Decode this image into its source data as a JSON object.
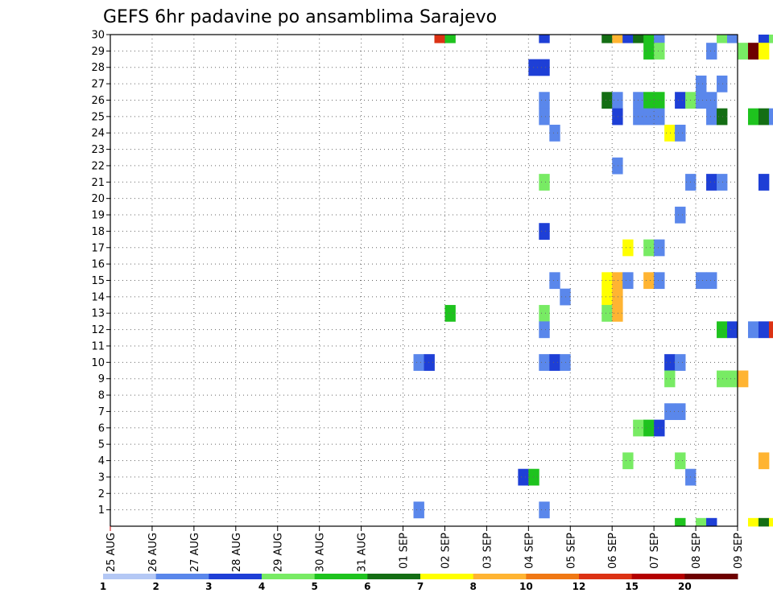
{
  "chart_data": {
    "type": "heatmap",
    "title": "GEFS 6hr padavine po ansamblima Sarajevo",
    "x_tick_labels": [
      "25 AUG",
      "26 AUG",
      "27 AUG",
      "28 AUG",
      "29 AUG",
      "30 AUG",
      "31 AUG",
      "01 SEP",
      "02 SEP",
      "03 SEP",
      "04 SEP",
      "05 SEP",
      "06 SEP",
      "07 SEP",
      "08 SEP",
      "09 SEP"
    ],
    "y_tick_labels": [
      1,
      2,
      3,
      4,
      5,
      6,
      7,
      8,
      9,
      10,
      11,
      12,
      13,
      14,
      15,
      16,
      17,
      18,
      19,
      20,
      21,
      22,
      23,
      24,
      25,
      26,
      27,
      28,
      29,
      30
    ],
    "x_range_days": [
      0,
      15
    ],
    "steps_per_day": 4,
    "grid": "dotted",
    "colorbar": {
      "labels": [
        1,
        2,
        3,
        4,
        5,
        6,
        7,
        8,
        10,
        12,
        15,
        20
      ],
      "colors": [
        "#b4c8f5",
        "#5a87eb",
        "#1e3fd6",
        "#78eb64",
        "#1ec31e",
        "#146e14",
        "#ffff00",
        "#ffb432",
        "#f07814",
        "#dc3214",
        "#b40000",
        "#6e0000"
      ]
    },
    "cells_note": "[member, step_from_25AUG00, color_class_index]",
    "cells": [
      [
        30,
        31,
        9
      ],
      [
        30,
        32,
        4
      ],
      [
        30,
        41,
        2
      ],
      [
        30,
        47,
        5
      ],
      [
        30,
        48,
        7
      ],
      [
        30,
        49,
        2
      ],
      [
        30,
        50,
        5
      ],
      [
        30,
        51,
        4
      ],
      [
        30,
        52,
        1
      ],
      [
        30,
        58,
        3
      ],
      [
        30,
        59,
        1
      ],
      [
        30,
        62,
        2
      ],
      [
        30,
        63,
        3
      ],
      [
        30,
        64,
        2
      ],
      [
        30,
        66,
        4
      ],
      [
        30,
        71,
        1
      ],
      [
        30,
        72,
        9
      ],
      [
        30,
        73,
        1
      ],
      [
        30,
        78,
        2
      ],
      [
        30,
        81,
        1
      ],
      [
        30,
        84,
        1
      ],
      [
        30,
        85,
        4
      ],
      [
        30,
        86,
        3
      ],
      [
        29,
        51,
        4
      ],
      [
        29,
        52,
        3
      ],
      [
        29,
        57,
        1
      ],
      [
        29,
        60,
        3
      ],
      [
        29,
        61,
        11
      ],
      [
        29,
        62,
        6
      ],
      [
        29,
        64,
        1
      ],
      [
        29,
        65,
        2
      ],
      [
        29,
        89,
        9
      ],
      [
        29,
        90,
        3
      ],
      [
        29,
        92,
        1
      ],
      [
        28,
        40,
        2
      ],
      [
        28,
        41,
        2
      ],
      [
        28,
        83,
        1
      ],
      [
        28,
        92,
        2
      ],
      [
        28,
        93,
        6
      ],
      [
        27,
        56,
        1
      ],
      [
        27,
        58,
        1
      ],
      [
        27,
        86,
        2
      ],
      [
        27,
        93,
        1
      ],
      [
        26,
        41,
        1
      ],
      [
        26,
        47,
        5
      ],
      [
        26,
        48,
        1
      ],
      [
        26,
        50,
        1
      ],
      [
        26,
        51,
        4
      ],
      [
        26,
        52,
        4
      ],
      [
        26,
        54,
        2
      ],
      [
        26,
        55,
        3
      ],
      [
        26,
        56,
        1
      ],
      [
        26,
        57,
        1
      ],
      [
        25,
        41,
        1
      ],
      [
        25,
        48,
        2
      ],
      [
        25,
        50,
        1
      ],
      [
        25,
        51,
        1
      ],
      [
        25,
        52,
        1
      ],
      [
        25,
        57,
        1
      ],
      [
        25,
        58,
        5
      ],
      [
        25,
        61,
        4
      ],
      [
        25,
        62,
        5
      ],
      [
        25,
        63,
        1
      ],
      [
        25,
        66,
        1
      ],
      [
        25,
        67,
        1
      ],
      [
        25,
        72,
        7
      ],
      [
        25,
        73,
        6
      ],
      [
        24,
        42,
        1
      ],
      [
        24,
        53,
        6
      ],
      [
        24,
        54,
        1
      ],
      [
        22,
        48,
        1
      ],
      [
        22,
        81,
        1
      ],
      [
        22,
        86,
        1
      ],
      [
        22,
        87,
        1
      ],
      [
        21,
        41,
        3
      ],
      [
        21,
        55,
        1
      ],
      [
        21,
        57,
        2
      ],
      [
        21,
        58,
        1
      ],
      [
        21,
        62,
        2
      ],
      [
        21,
        65,
        3
      ],
      [
        20,
        82,
        2
      ],
      [
        20,
        87,
        1
      ],
      [
        20,
        90,
        6
      ],
      [
        20,
        93,
        4
      ],
      [
        20,
        94,
        2
      ],
      [
        20,
        95,
        3
      ],
      [
        19,
        54,
        1
      ],
      [
        19,
        85,
        2
      ],
      [
        19,
        86,
        3
      ],
      [
        19,
        88,
        2
      ],
      [
        19,
        89,
        9
      ],
      [
        19,
        90,
        4
      ],
      [
        18,
        41,
        2
      ],
      [
        18,
        65,
        1
      ],
      [
        18,
        72,
        3
      ],
      [
        18,
        73,
        3
      ],
      [
        18,
        84,
        1
      ],
      [
        17,
        49,
        6
      ],
      [
        17,
        51,
        3
      ],
      [
        17,
        52,
        1
      ],
      [
        15,
        42,
        1
      ],
      [
        15,
        47,
        6
      ],
      [
        15,
        48,
        7
      ],
      [
        15,
        49,
        1
      ],
      [
        15,
        51,
        7
      ],
      [
        15,
        52,
        1
      ],
      [
        15,
        56,
        1
      ],
      [
        15,
        57,
        1
      ],
      [
        15,
        67,
        8
      ],
      [
        15,
        68,
        1
      ],
      [
        15,
        73,
        1
      ],
      [
        15,
        85,
        1
      ],
      [
        15,
        87,
        1
      ],
      [
        15,
        89,
        2
      ],
      [
        14,
        43,
        1
      ],
      [
        14,
        47,
        6
      ],
      [
        14,
        48,
        7
      ],
      [
        14,
        64,
        1
      ],
      [
        14,
        65,
        1
      ],
      [
        14,
        90,
        1
      ],
      [
        13,
        32,
        4
      ],
      [
        13,
        41,
        3
      ],
      [
        13,
        47,
        3
      ],
      [
        13,
        48,
        7
      ],
      [
        13,
        67,
        3
      ],
      [
        13,
        68,
        4
      ],
      [
        13,
        73,
        6
      ],
      [
        13,
        74,
        1
      ],
      [
        13,
        79,
        4
      ],
      [
        13,
        85,
        2
      ],
      [
        13,
        86,
        6
      ],
      [
        13,
        88,
        4
      ],
      [
        13,
        90,
        9
      ],
      [
        13,
        91,
        6
      ],
      [
        13,
        93,
        9
      ],
      [
        13,
        94,
        6
      ],
      [
        12,
        41,
        1
      ],
      [
        12,
        58,
        4
      ],
      [
        12,
        59,
        2
      ],
      [
        12,
        61,
        1
      ],
      [
        12,
        62,
        2
      ],
      [
        12,
        63,
        9
      ],
      [
        12,
        64,
        2
      ],
      [
        12,
        65,
        2
      ],
      [
        12,
        66,
        2
      ],
      [
        12,
        67,
        1
      ],
      [
        12,
        73,
        4
      ],
      [
        12,
        74,
        1
      ],
      [
        12,
        82,
        1
      ],
      [
        12,
        84,
        1
      ],
      [
        12,
        87,
        1
      ],
      [
        10,
        29,
        1
      ],
      [
        10,
        30,
        2
      ],
      [
        10,
        41,
        1
      ],
      [
        10,
        42,
        2
      ],
      [
        10,
        43,
        1
      ],
      [
        10,
        53,
        2
      ],
      [
        10,
        54,
        1
      ],
      [
        9,
        53,
        3
      ],
      [
        9,
        58,
        3
      ],
      [
        9,
        59,
        3
      ],
      [
        9,
        60,
        7
      ],
      [
        9,
        66,
        3
      ],
      [
        9,
        71,
        2
      ],
      [
        9,
        72,
        9
      ],
      [
        9,
        73,
        1
      ],
      [
        9,
        79,
        1
      ],
      [
        9,
        83,
        5
      ],
      [
        9,
        84,
        1
      ],
      [
        9,
        85,
        2
      ],
      [
        9,
        86,
        3
      ],
      [
        9,
        87,
        2
      ],
      [
        9,
        88,
        2
      ],
      [
        9,
        89,
        7
      ],
      [
        9,
        90,
        2
      ],
      [
        9,
        91,
        2
      ],
      [
        9,
        92,
        2
      ],
      [
        9,
        93,
        4
      ],
      [
        9,
        94,
        2
      ],
      [
        8,
        86,
        1
      ],
      [
        8,
        90,
        1
      ],
      [
        8,
        93,
        7
      ],
      [
        7,
        53,
        1
      ],
      [
        7,
        54,
        1
      ],
      [
        7,
        67,
        2
      ],
      [
        7,
        68,
        6
      ],
      [
        7,
        69,
        1
      ],
      [
        7,
        71,
        1
      ],
      [
        7,
        72,
        1
      ],
      [
        7,
        73,
        1
      ],
      [
        7,
        89,
        1
      ],
      [
        7,
        93,
        2
      ],
      [
        6,
        50,
        3
      ],
      [
        6,
        51,
        4
      ],
      [
        6,
        52,
        2
      ],
      [
        6,
        82,
        1
      ],
      [
        5,
        64,
        3
      ],
      [
        4,
        49,
        3
      ],
      [
        4,
        54,
        3
      ],
      [
        4,
        62,
        7
      ],
      [
        4,
        64,
        2
      ],
      [
        4,
        79,
        2
      ],
      [
        4,
        80,
        7
      ],
      [
        4,
        85,
        3
      ],
      [
        4,
        86,
        8
      ],
      [
        4,
        87,
        3
      ],
      [
        4,
        88,
        8
      ],
      [
        4,
        89,
        2
      ],
      [
        4,
        90,
        3
      ],
      [
        3,
        39,
        2
      ],
      [
        3,
        40,
        4
      ],
      [
        3,
        55,
        1
      ],
      [
        3,
        87,
        2
      ],
      [
        1,
        29,
        1
      ],
      [
        1,
        41,
        1
      ],
      [
        1,
        84,
        2
      ],
      [
        1,
        85,
        1
      ],
      [
        1,
        86,
        2
      ],
      [
        1,
        87,
        11
      ],
      [
        1,
        88,
        11
      ],
      [
        1,
        90,
        3
      ],
      [
        1,
        92,
        1
      ],
      [
        1,
        93,
        1
      ],
      [
        0,
        54,
        4
      ],
      [
        0,
        56,
        3
      ],
      [
        0,
        57,
        2
      ],
      [
        0,
        61,
        6
      ],
      [
        0,
        62,
        5
      ],
      [
        0,
        63,
        6
      ],
      [
        0,
        70,
        1
      ],
      [
        0,
        72,
        2
      ],
      [
        0,
        73,
        8
      ],
      [
        0,
        74,
        1
      ],
      [
        0,
        79,
        1
      ],
      [
        0,
        80,
        5
      ],
      [
        0,
        82,
        1
      ]
    ]
  }
}
